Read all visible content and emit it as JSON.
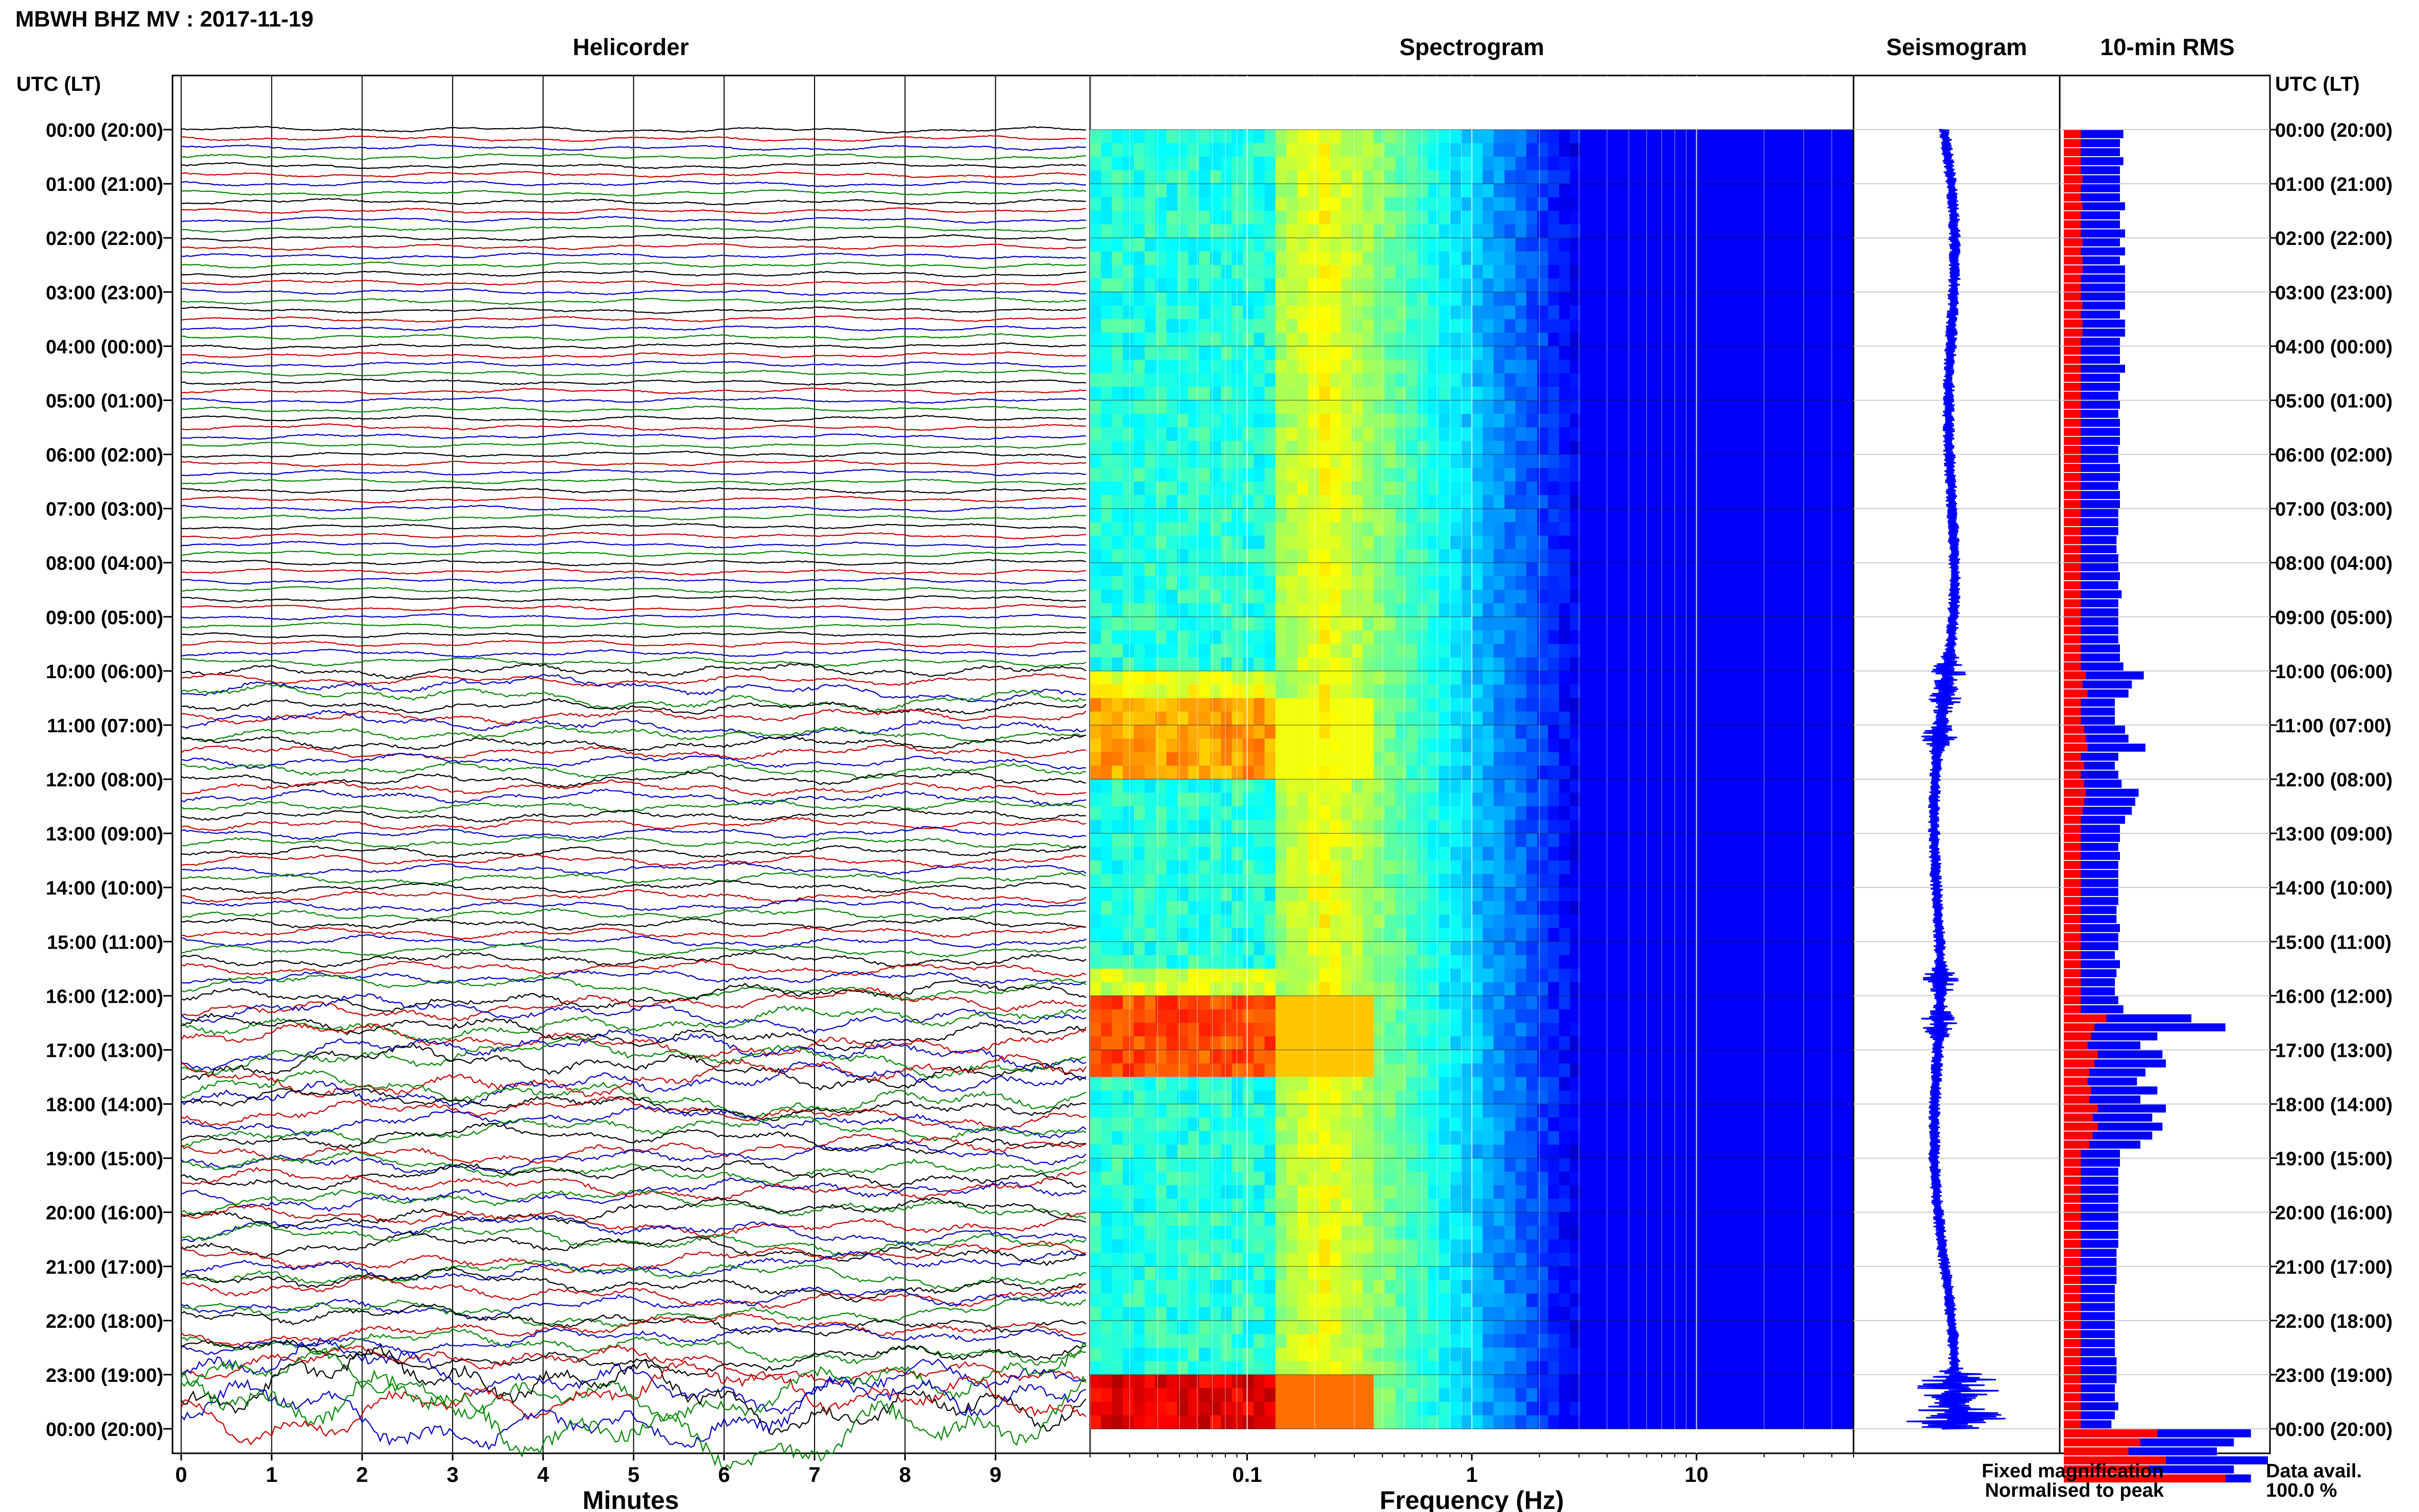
{
  "title": "MBWH BHZ MV : 2017-11-19",
  "panels": {
    "helicorder": "Helicorder",
    "spectrogram": "Spectrogram",
    "seismogram": "Seismogram",
    "rms": "10-min RMS"
  },
  "time_axis_label": "UTC (LT)",
  "time_labels": [
    "00:00 (20:00)",
    "01:00 (21:00)",
    "02:00 (22:00)",
    "03:00 (23:00)",
    "04:00 (00:00)",
    "05:00 (01:00)",
    "06:00 (02:00)",
    "07:00 (03:00)",
    "08:00 (04:00)",
    "09:00 (05:00)",
    "10:00 (06:00)",
    "11:00 (07:00)",
    "12:00 (08:00)",
    "13:00 (09:00)",
    "14:00 (10:00)",
    "15:00 (11:00)",
    "16:00 (12:00)",
    "17:00 (13:00)",
    "18:00 (14:00)",
    "19:00 (15:00)",
    "20:00 (16:00)",
    "21:00 (17:00)",
    "22:00 (18:00)",
    "23:00 (19:00)",
    "00:00 (20:00)"
  ],
  "helicorder_xlabel": "Minutes",
  "helicorder_ticks": [
    "0",
    "1",
    "2",
    "3",
    "4",
    "5",
    "6",
    "7",
    "8",
    "9"
  ],
  "spectrogram_xlabel": "Frequency (Hz)",
  "spectrogram_ticks": [
    "0.1",
    "1",
    "10"
  ],
  "legend": {
    "fixed": "Fixed magnification",
    "normalised": "Normalised to peak",
    "fixed_color": "#0000ff",
    "normalised_color": "#ff0000"
  },
  "data_avail": {
    "label": "Data avail.",
    "value": "100.0 %"
  },
  "trace_colors": [
    "#000000",
    "#cc0000",
    "#0000cc",
    "#008800"
  ],
  "chart_data": [
    {
      "type": "line",
      "name": "helicorder",
      "title": "Helicorder",
      "xlabel": "Minutes",
      "xlim": [
        0,
        10
      ],
      "rows": 144,
      "row_minutes": 10,
      "row_amplitude": [
        1,
        1,
        1,
        1,
        1,
        1,
        1,
        1,
        1,
        1,
        1,
        1,
        1,
        1,
        1,
        1,
        1,
        1,
        1,
        1,
        1,
        1,
        1,
        1,
        1,
        1,
        1,
        1,
        1,
        1,
        1,
        1,
        1,
        1,
        1,
        1,
        1,
        1,
        1,
        1,
        1,
        1,
        1,
        1,
        1,
        1,
        1,
        1,
        1,
        1,
        1,
        1,
        1,
        1,
        1,
        1,
        1,
        1.2,
        1.3,
        1.5,
        2.5,
        2,
        3,
        3,
        2.5,
        2.5,
        3,
        2.5,
        2.5,
        2.5,
        2.5,
        2.5,
        2.5,
        2.5,
        2.5,
        2,
        2,
        2,
        2,
        2,
        2,
        2,
        2,
        2,
        2,
        2,
        2,
        2,
        2,
        2,
        2,
        2,
        2.5,
        2.5,
        2.5,
        3,
        3.5,
        3.5,
        4,
        4,
        4,
        4,
        4.5,
        4.5,
        5,
        5,
        5,
        5,
        3.5,
        3.5,
        3.5,
        3.5,
        3.5,
        3.5,
        3.5,
        3.5,
        3.5,
        3.5,
        3.5,
        3.5,
        3.5,
        3.5,
        3.5,
        3.5,
        3.5,
        3.5,
        3.5,
        3.5,
        3.5,
        3.5,
        3.5,
        3.5,
        3.5,
        3.5,
        3.5,
        4,
        4,
        5,
        8,
        9,
        10,
        9,
        10,
        12
      ]
    },
    {
      "type": "heatmap",
      "name": "spectrogram",
      "title": "Spectrogram",
      "xlabel": "Frequency (Hz)",
      "xscale": "log",
      "xlim": [
        0.02,
        50
      ],
      "colormap": "jet",
      "quiet_profile": {
        "peak_hz": 0.22,
        "highcut_hz": 3
      },
      "bursts": [
        {
          "start_hour": 9.9,
          "end_hour": 10.6,
          "low_band_level": 0.6
        },
        {
          "start_hour": 10.6,
          "end_hour": 12.0,
          "low_band_level": 0.72
        },
        {
          "start_hour": 15.5,
          "end_hour": 16.0,
          "low_band_level": 0.58
        },
        {
          "start_hour": 16.0,
          "end_hour": 17.6,
          "low_band_level": 0.8
        },
        {
          "start_hour": 23.0,
          "end_hour": 24.0,
          "low_band_level": 0.9
        }
      ]
    },
    {
      "type": "line",
      "name": "seismogram",
      "title": "Seismogram",
      "xlim": [
        0,
        24
      ],
      "bursts_hours": [
        10.0,
        10.5,
        11.2,
        15.7,
        16.5,
        23.2,
        23.8
      ]
    },
    {
      "type": "bar",
      "name": "rms",
      "title": "10-min RMS",
      "orientation": "horizontal",
      "bins": 144,
      "series": [
        {
          "name": "Fixed magnification",
          "color": "#0000ff",
          "values": [
            0.35,
            0.33,
            0.33,
            0.35,
            0.33,
            0.33,
            0.33,
            0.33,
            0.36,
            0.33,
            0.33,
            0.36,
            0.33,
            0.36,
            0.33,
            0.36,
            0.36,
            0.36,
            0.36,
            0.36,
            0.33,
            0.36,
            0.36,
            0.33,
            0.33,
            0.33,
            0.36,
            0.33,
            0.33,
            0.32,
            0.33,
            0.32,
            0.33,
            0.33,
            0.33,
            0.32,
            0.32,
            0.33,
            0.33,
            0.32,
            0.33,
            0.33,
            0.32,
            0.32,
            0.32,
            0.31,
            0.31,
            0.32,
            0.32,
            0.33,
            0.32,
            0.34,
            0.32,
            0.32,
            0.32,
            0.32,
            0.32,
            0.33,
            0.33,
            0.35,
            0.47,
            0.4,
            0.38,
            0.3,
            0.3,
            0.3,
            0.36,
            0.38,
            0.48,
            0.32,
            0.3,
            0.32,
            0.34,
            0.44,
            0.42,
            0.4,
            0.36,
            0.33,
            0.33,
            0.32,
            0.33,
            0.32,
            0.32,
            0.32,
            0.32,
            0.32,
            0.31,
            0.31,
            0.33,
            0.32,
            0.32,
            0.3,
            0.33,
            0.31,
            0.3,
            0.3,
            0.32,
            0.35,
            0.75,
            0.95,
            0.55,
            0.45,
            0.58,
            0.6,
            0.48,
            0.43,
            0.55,
            0.45,
            0.6,
            0.52,
            0.58,
            0.52,
            0.45,
            0.33,
            0.33,
            0.32,
            0.32,
            0.32,
            0.32,
            0.32,
            0.32,
            0.32,
            0.32,
            0.32,
            0.31,
            0.31,
            0.31,
            0.31,
            0.3,
            0.3,
            0.3,
            0.3,
            0.3,
            0.3,
            0.3,
            0.3,
            0.31,
            0.31,
            0.31,
            0.3,
            0.3,
            0.32,
            0.3,
            0.28,
            1.1,
            1.0,
            0.9,
            1.2,
            1.0,
            1.1
          ]
        },
        {
          "name": "Normalised to peak",
          "color": "#ff0000",
          "values": [
            0.1,
            0.1,
            0.1,
            0.1,
            0.1,
            0.11,
            0.1,
            0.1,
            0.11,
            0.1,
            0.1,
            0.1,
            0.11,
            0.1,
            0.11,
            0.11,
            0.1,
            0.1,
            0.1,
            0.11,
            0.1,
            0.11,
            0.11,
            0.1,
            0.1,
            0.1,
            0.1,
            0.1,
            0.1,
            0.1,
            0.1,
            0.1,
            0.1,
            0.1,
            0.1,
            0.1,
            0.1,
            0.1,
            0.1,
            0.1,
            0.1,
            0.1,
            0.1,
            0.1,
            0.1,
            0.1,
            0.1,
            0.1,
            0.1,
            0.1,
            0.1,
            0.1,
            0.1,
            0.1,
            0.1,
            0.1,
            0.1,
            0.1,
            0.1,
            0.1,
            0.13,
            0.11,
            0.14,
            0.1,
            0.1,
            0.1,
            0.12,
            0.13,
            0.14,
            0.1,
            0.12,
            0.1,
            0.12,
            0.13,
            0.12,
            0.11,
            0.1,
            0.1,
            0.1,
            0.1,
            0.1,
            0.1,
            0.1,
            0.1,
            0.1,
            0.1,
            0.1,
            0.1,
            0.1,
            0.1,
            0.1,
            0.1,
            0.1,
            0.1,
            0.1,
            0.1,
            0.1,
            0.1,
            0.25,
            0.18,
            0.16,
            0.14,
            0.2,
            0.18,
            0.15,
            0.14,
            0.16,
            0.15,
            0.2,
            0.17,
            0.2,
            0.17,
            0.15,
            0.1,
            0.1,
            0.1,
            0.1,
            0.1,
            0.1,
            0.1,
            0.1,
            0.1,
            0.1,
            0.1,
            0.1,
            0.1,
            0.1,
            0.1,
            0.1,
            0.1,
            0.1,
            0.1,
            0.1,
            0.1,
            0.1,
            0.1,
            0.1,
            0.1,
            0.1,
            0.1,
            0.1,
            0.1,
            0.1,
            0.1,
            0.55,
            0.45,
            0.38,
            0.6,
            0.5,
            0.95
          ]
        }
      ]
    }
  ]
}
